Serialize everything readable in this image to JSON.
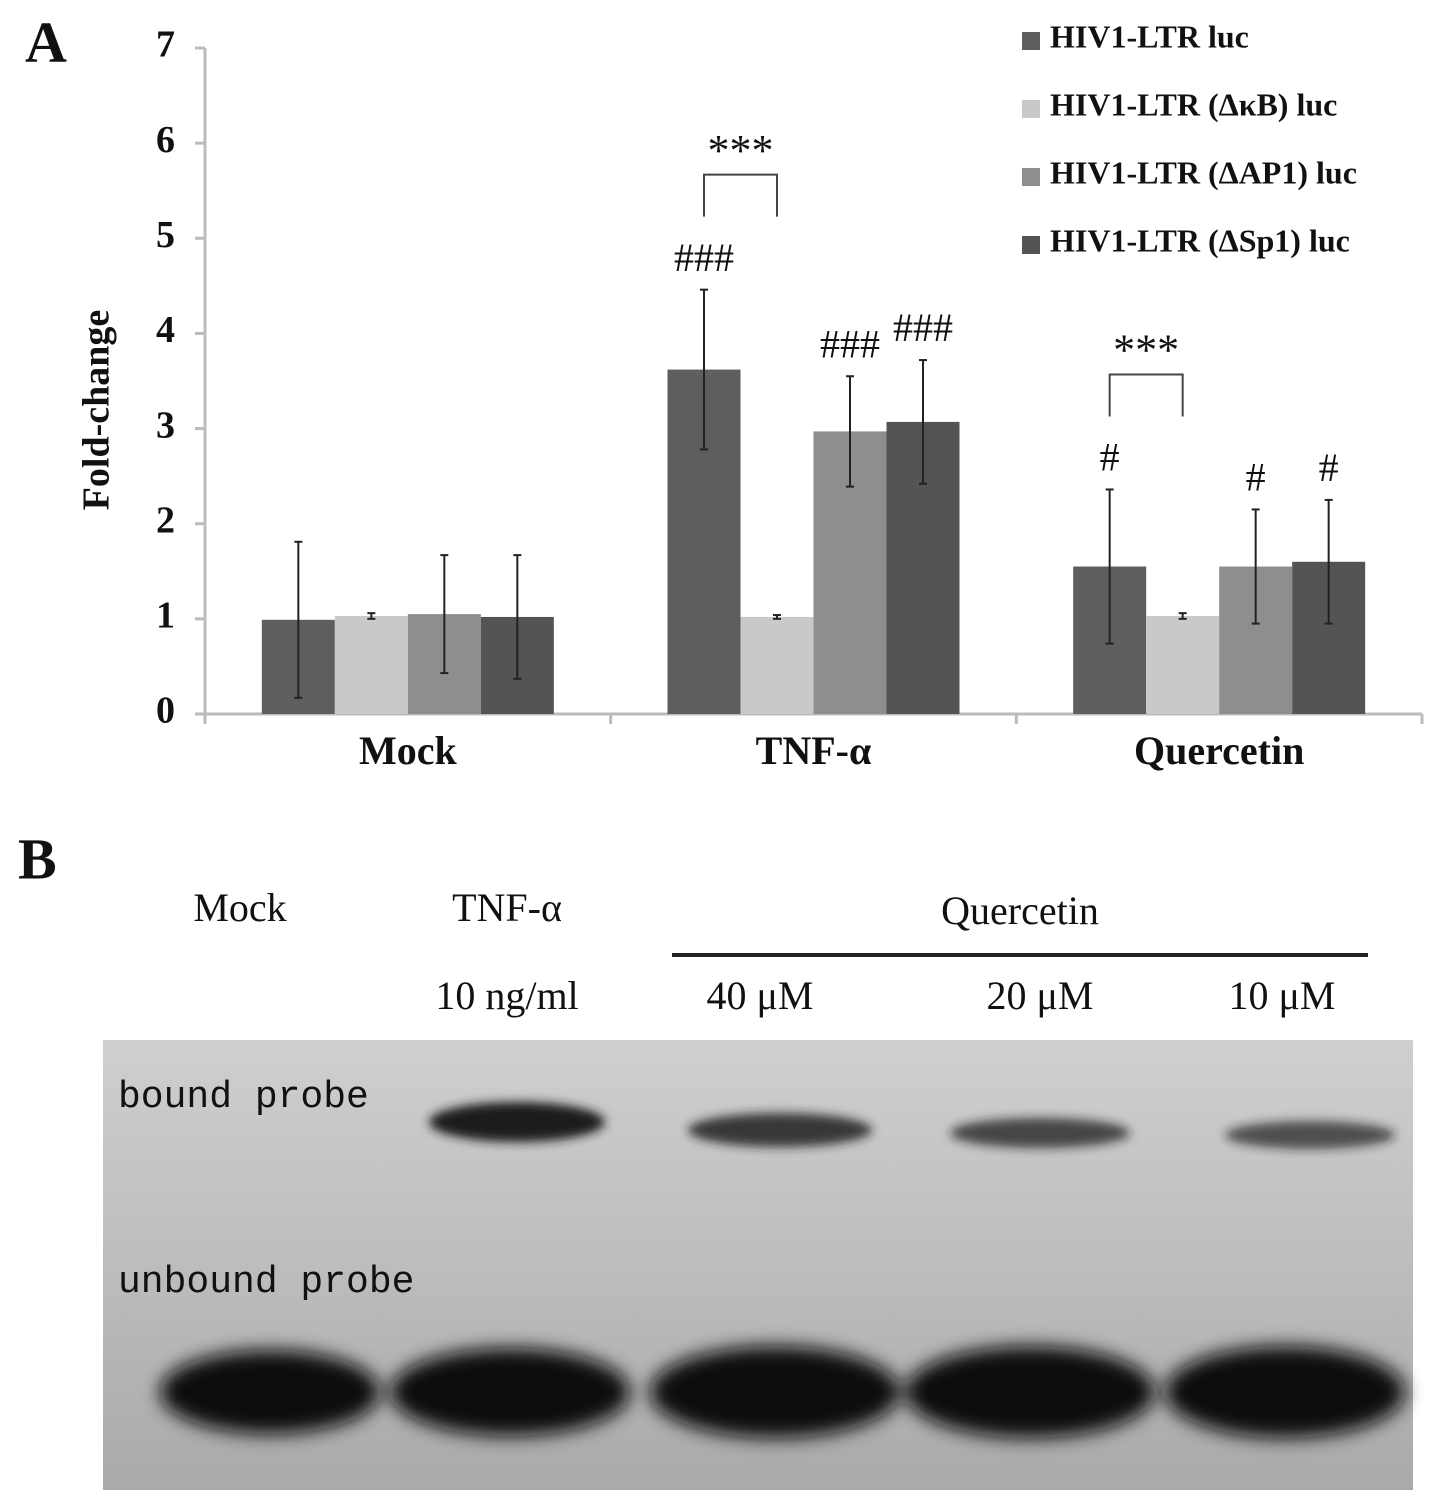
{
  "chart_data": {
    "type": "bar",
    "panel_label": "A",
    "y_label": "Fold-change",
    "categories": [
      "Mock",
      "TNF-α",
      "Quercetin"
    ],
    "series": [
      {
        "name": "HIV1-LTR luc",
        "color": "#5e5e5e",
        "values": [
          0.99,
          3.62,
          1.55
        ],
        "errors": [
          0.82,
          0.84,
          0.81
        ],
        "annotations": [
          null,
          "###",
          "#"
        ]
      },
      {
        "name": "HIV1-LTR (ΔκB) luc",
        "color": "#c9c9c9",
        "values": [
          1.03,
          1.02,
          1.03
        ],
        "errors": [
          0.03,
          0.02,
          0.03
        ],
        "annotations": [
          null,
          null,
          null
        ]
      },
      {
        "name": "HIV1-LTR (ΔAP1) luc",
        "color": "#8e8e8e",
        "values": [
          1.05,
          2.97,
          1.55
        ],
        "errors": [
          0.62,
          0.58,
          0.6
        ],
        "annotations": [
          null,
          "###",
          "#"
        ]
      },
      {
        "name": "HIV1-LTR (ΔSp1) luc",
        "color": "#545454",
        "values": [
          1.02,
          3.07,
          1.6
        ],
        "errors": [
          0.65,
          0.65,
          0.65
        ],
        "annotations": [
          null,
          "###",
          "#"
        ]
      }
    ],
    "significance": [
      null,
      "***",
      "***"
    ],
    "ylim": [
      0,
      7
    ],
    "yticks": [
      0,
      1,
      2,
      3,
      4,
      5,
      6,
      7
    ]
  },
  "gel": {
    "panel_label": "B",
    "group_label": "Quercetin",
    "lanes": [
      {
        "label": "Mock",
        "dose": null
      },
      {
        "label": "TNF-α",
        "dose": "10 ng/ml"
      },
      {
        "label": null,
        "dose": "40 μM"
      },
      {
        "label": null,
        "dose": "20 μM"
      },
      {
        "label": null,
        "dose": "10 μM"
      }
    ],
    "band_labels": [
      "bound probe",
      "unbound probe"
    ]
  }
}
